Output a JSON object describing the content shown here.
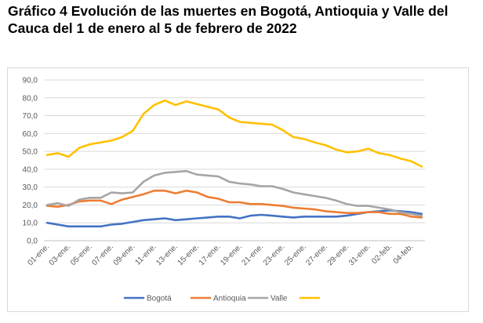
{
  "title": "Gráfico 4 Evolución de las muertes en Bogotá, Antioquia y Valle del Cauca del 1 de enero al 5 de febrero de 2022",
  "chart_data": {
    "type": "line",
    "title": "Gráfico 4 Evolución de las muertes en Bogotá, Antioquia y Valle del Cauca del 1 de enero al 5 de febrero de 2022",
    "xlabel": "",
    "ylabel": "",
    "ylim": [
      0,
      90
    ],
    "yticks": [
      "0,0",
      "10,0",
      "20,0",
      "30,0",
      "40,0",
      "50,0",
      "60,0",
      "70,0",
      "80,0",
      "90,0"
    ],
    "grid": true,
    "legend_position": "bottom",
    "x": [
      "01-ene.",
      "02-ene.",
      "03-ene.",
      "04-ene.",
      "05-ene.",
      "06-ene.",
      "07-ene.",
      "08-ene.",
      "09-ene.",
      "10-ene.",
      "11-ene.",
      "12-ene.",
      "13-ene.",
      "14-ene.",
      "15-ene.",
      "16-ene.",
      "17-ene.",
      "18-ene.",
      "19-ene.",
      "20-ene.",
      "21-ene.",
      "22-ene.",
      "23-ene.",
      "24-ene.",
      "25-ene.",
      "26-ene.",
      "27-ene.",
      "28-ene.",
      "29-ene.",
      "30-ene.",
      "31-ene.",
      "01-feb.",
      "02-feb.",
      "03-feb.",
      "04-feb.",
      "05-feb."
    ],
    "xtick_labels": [
      "01-ene.",
      "03-ene.",
      "05-ene.",
      "07-ene.",
      "09-ene.",
      "11-ene.",
      "13-ene.",
      "15-ene.",
      "17-ene.",
      "19-ene.",
      "21-ene.",
      "23-ene.",
      "25-ene.",
      "27-ene.",
      "29-ene.",
      "31-ene.",
      "02-feb.",
      "04-feb."
    ],
    "series": [
      {
        "name": "Bogotá",
        "color": "#4472c4",
        "values": [
          10,
          9,
          8,
          8,
          8,
          8,
          9,
          9.5,
          10.5,
          11.5,
          12,
          12.5,
          11.5,
          12,
          12.5,
          13,
          13.5,
          13.5,
          12.5,
          14,
          14.5,
          14,
          13.5,
          13,
          13.5,
          13.5,
          13.5,
          13.5,
          14,
          15,
          16,
          16.5,
          17,
          16.5,
          16,
          15
        ]
      },
      {
        "name": "Antioquia",
        "color": "#ed7d31",
        "values": [
          19.5,
          19,
          20,
          22,
          22.5,
          22.5,
          20.5,
          23,
          24.5,
          26,
          28,
          28,
          26.5,
          28,
          27,
          24.5,
          23.5,
          21.5,
          21.5,
          20.5,
          20.5,
          20,
          19.5,
          18.5,
          18,
          17.5,
          16.5,
          16,
          15.5,
          15.5,
          16,
          16,
          15,
          15,
          13.5,
          13
        ]
      },
      {
        "name": "Valle",
        "color": "#a5a5a5",
        "values": [
          20,
          21,
          19.5,
          23,
          24,
          24,
          27,
          26.5,
          27,
          33,
          36.5,
          38,
          38.5,
          39,
          37,
          36.5,
          36,
          33,
          32,
          31.5,
          30.5,
          30.5,
          29,
          27,
          26,
          25,
          24,
          22.5,
          20.5,
          19.5,
          19.5,
          18.5,
          17.5,
          16,
          15,
          14
        ]
      },
      {
        "name": "",
        "color": "#ffc000",
        "values": [
          48,
          49,
          47,
          52,
          54,
          55,
          56,
          58,
          61.5,
          71,
          76,
          78.5,
          76,
          78,
          76.5,
          75,
          73.5,
          69,
          66.5,
          66,
          65.5,
          65,
          62,
          58,
          57,
          55,
          53.5,
          51,
          49.5,
          50,
          51.5,
          49,
          48,
          46,
          44.5,
          41.5
        ]
      }
    ]
  }
}
